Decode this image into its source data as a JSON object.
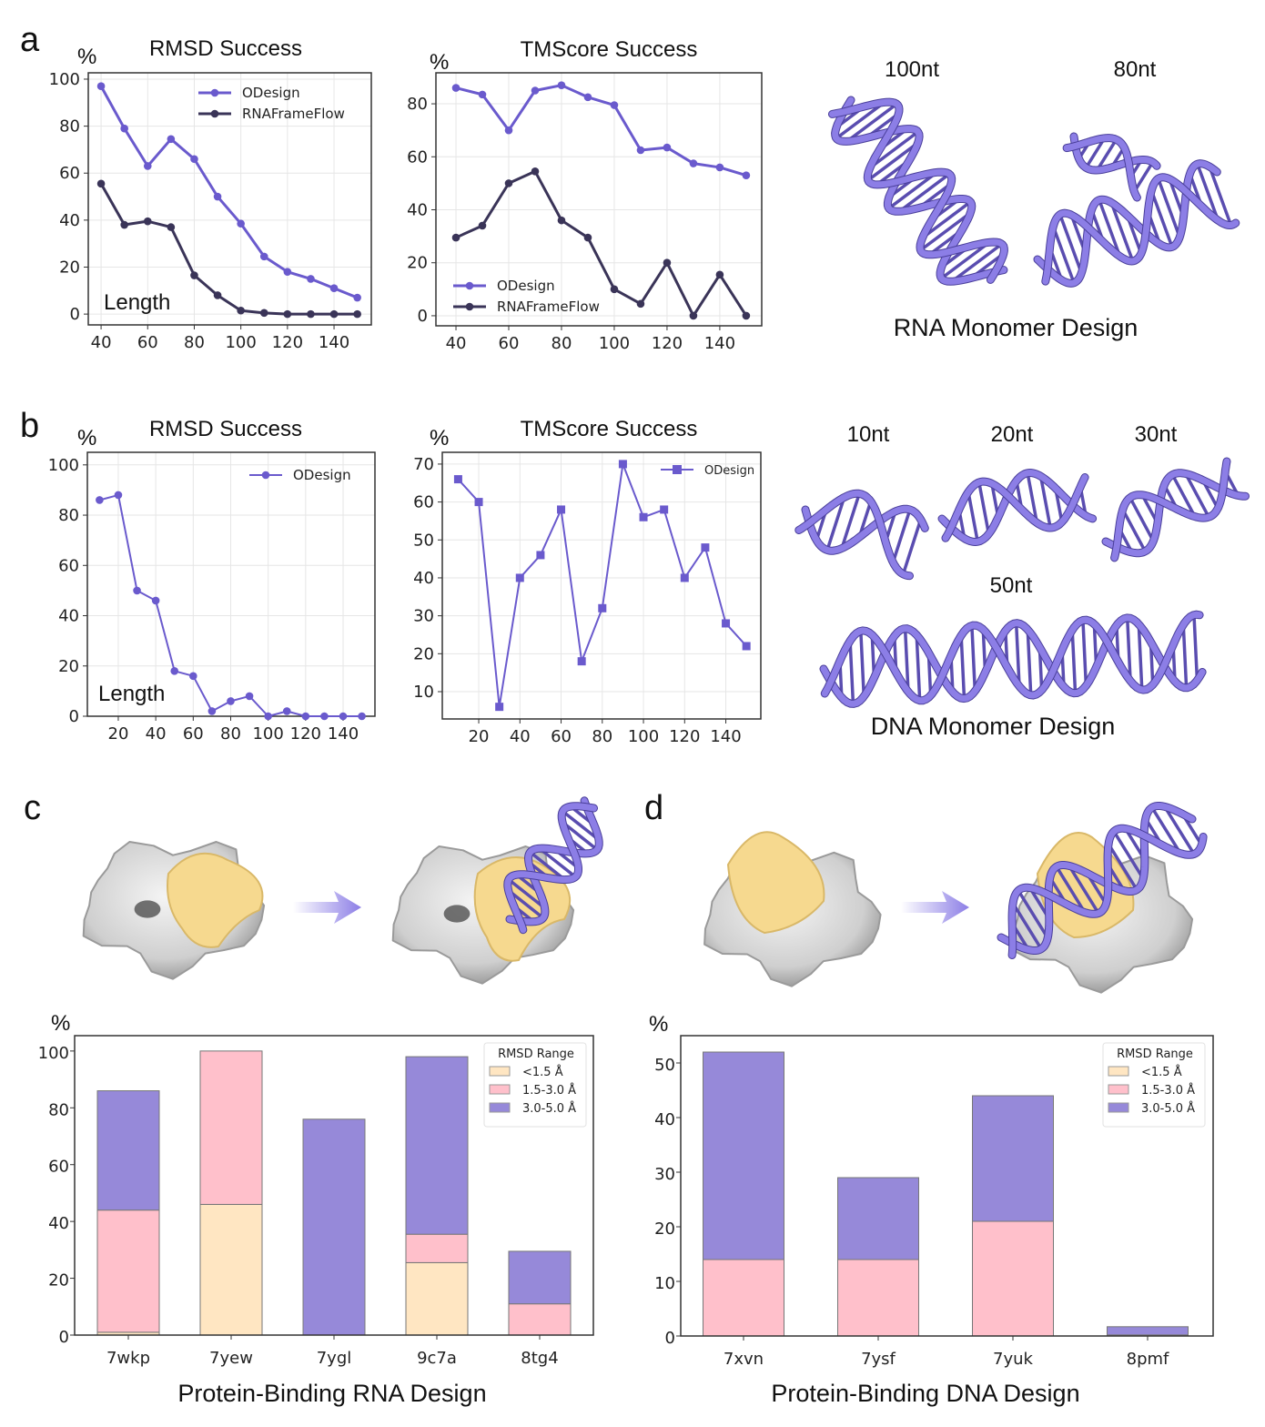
{
  "panels": {
    "a": {
      "letter": "a",
      "structures_caption": "RNA Monomer Design",
      "structure_labels": [
        "100nt",
        "80nt"
      ]
    },
    "b": {
      "letter": "b",
      "structures_caption": "DNA Monomer Design",
      "structure_labels": [
        "10nt",
        "20nt",
        "30nt",
        "50nt"
      ]
    },
    "c": {
      "letter": "c"
    },
    "d": {
      "letter": "d"
    }
  },
  "colors": {
    "odesign": "#6a5acd",
    "rnaframeflow": "#3a3458",
    "rmsd_lt_1_5": "#ffe6c2",
    "rmsd_1_5_3_0": "#ffc0cb",
    "rmsd_3_0_5_0": "#9689d9",
    "protein_surface": "#d8d8d8",
    "binding_site": "#f6d98f",
    "nucleic_acid": "#8c7ee6"
  },
  "chart_data": [
    {
      "type": "line",
      "title": "RMSD Success",
      "ylabel": "%",
      "xlabel": "Length",
      "x": [
        40,
        50,
        60,
        70,
        80,
        90,
        100,
        110,
        120,
        130,
        140,
        150
      ],
      "xticks": [
        40,
        60,
        80,
        100,
        120,
        140
      ],
      "yticks": [
        0,
        20,
        40,
        60,
        80,
        100
      ],
      "xlim": [
        34.5,
        156
      ],
      "ylim": [
        -4.6,
        102.7
      ],
      "grid": true,
      "legend": "top-right",
      "marker": "circle",
      "series": [
        {
          "name": "ODesign",
          "color": "#6a5acd",
          "values": [
            97,
            79,
            63,
            74.5,
            66,
            50,
            38.5,
            24.5,
            18,
            15,
            11,
            7
          ]
        },
        {
          "name": "RNAFrameFlow",
          "color": "#3a3458",
          "values": [
            55.5,
            38,
            39.5,
            37,
            16.5,
            8,
            1.5,
            0.5,
            0,
            0,
            0,
            0
          ]
        }
      ]
    },
    {
      "type": "line",
      "title": "TMScore Success",
      "ylabel": "%",
      "xlabel": "",
      "x": [
        40,
        50,
        60,
        70,
        80,
        90,
        100,
        110,
        120,
        130,
        140,
        150
      ],
      "xticks": [
        40,
        60,
        80,
        100,
        120,
        140
      ],
      "yticks": [
        0,
        20,
        40,
        60,
        80
      ],
      "xlim": [
        32.4,
        155.9
      ],
      "ylim": [
        -3.8,
        91.7
      ],
      "grid": true,
      "legend": "bottom-left",
      "marker": "circle",
      "series": [
        {
          "name": "ODesign",
          "color": "#6a5acd",
          "values": [
            86,
            83.5,
            70,
            85,
            87,
            82.5,
            79.5,
            62.5,
            63.5,
            57.5,
            56,
            53
          ]
        },
        {
          "name": "RNAFrameFlow",
          "color": "#3a3458",
          "values": [
            29.5,
            34,
            50,
            54.5,
            36,
            29.5,
            10,
            4.5,
            20,
            0,
            15.5,
            0
          ]
        }
      ]
    },
    {
      "type": "line",
      "title": "RMSD Success",
      "ylabel": "%",
      "xlabel": "Length",
      "x": [
        10,
        20,
        30,
        40,
        50,
        60,
        70,
        80,
        90,
        100,
        110,
        120,
        130,
        140,
        150
      ],
      "xticks": [
        20,
        40,
        60,
        80,
        100,
        120,
        140
      ],
      "yticks": [
        0,
        20,
        40,
        60,
        80,
        100
      ],
      "xlim": [
        3.5,
        157
      ],
      "ylim": [
        0,
        105
      ],
      "grid": true,
      "legend": "top-right",
      "marker": "circle",
      "series": [
        {
          "name": "ODesign",
          "color": "#6a5acd",
          "values": [
            86,
            88,
            50,
            46,
            18,
            16,
            2,
            6,
            8,
            0,
            2,
            0,
            0,
            0,
            0
          ]
        }
      ]
    },
    {
      "type": "line",
      "title": "TMScore Success",
      "ylabel": "%",
      "xlabel": "",
      "x": [
        10,
        20,
        30,
        40,
        50,
        60,
        70,
        80,
        90,
        100,
        110,
        120,
        130,
        140,
        150
      ],
      "xticks": [
        20,
        40,
        60,
        80,
        100,
        120,
        140
      ],
      "yticks": [
        10,
        20,
        30,
        40,
        50,
        60,
        70
      ],
      "xlim": [
        2.3,
        157
      ],
      "ylim": [
        2.8,
        73.1
      ],
      "grid": true,
      "legend": "top-right",
      "marker": "square",
      "series": [
        {
          "name": "ODesign",
          "color": "#6a5acd",
          "values": [
            66,
            60,
            6,
            40,
            46,
            58,
            18,
            32,
            70,
            56,
            58,
            40,
            48,
            28,
            22
          ]
        }
      ]
    },
    {
      "type": "bar",
      "stacked": true,
      "ylabel": "%",
      "xlabel": "Protein-Binding RNA Design",
      "categories": [
        "7wkp",
        "7yew",
        "7ygl",
        "9c7a",
        "8tg4"
      ],
      "yticks": [
        0,
        20,
        40,
        60,
        80,
        100
      ],
      "ylim": [
        0,
        105.4
      ],
      "legend_title": "RMSD Range",
      "legend": "top-right",
      "series": [
        {
          "name": "<1.5 Å",
          "color": "#ffe6c2",
          "values": [
            1,
            46,
            0,
            25.5,
            0
          ]
        },
        {
          "name": "1.5-3.0 Å",
          "color": "#ffc0cb",
          "values": [
            43,
            54,
            0,
            10,
            11
          ]
        },
        {
          "name": "3.0-5.0 Å",
          "color": "#9689d9",
          "values": [
            42,
            0,
            76,
            62.5,
            18.5
          ]
        }
      ]
    },
    {
      "type": "bar",
      "stacked": true,
      "ylabel": "%",
      "xlabel": "Protein-Binding DNA Design",
      "categories": [
        "7xvn",
        "7ysf",
        "7yuk",
        "8pmf"
      ],
      "yticks": [
        0,
        10,
        20,
        30,
        40,
        50
      ],
      "ylim": [
        0,
        55
      ],
      "legend_title": "RMSD Range",
      "legend": "top-right",
      "series": [
        {
          "name": "<1.5 Å",
          "color": "#ffe6c2",
          "values": [
            0,
            0,
            0,
            0
          ]
        },
        {
          "name": "1.5-3.0 Å",
          "color": "#ffc0cb",
          "values": [
            14,
            14,
            21,
            0.2
          ]
        },
        {
          "name": "3.0-5.0 Å",
          "color": "#9689d9",
          "values": [
            38,
            15,
            23,
            1.5
          ]
        }
      ]
    }
  ]
}
